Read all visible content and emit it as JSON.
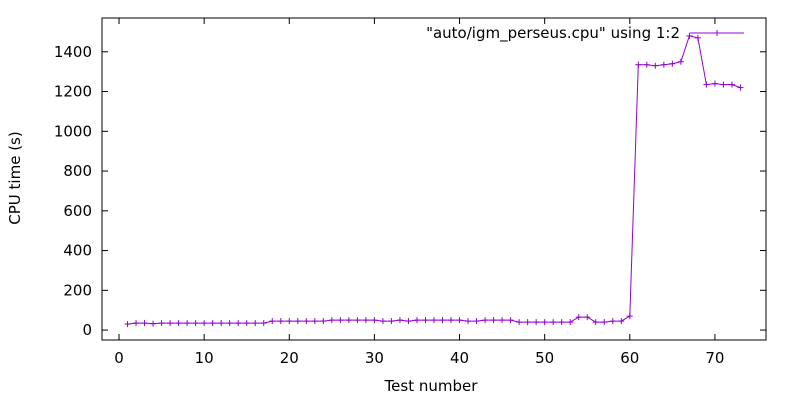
{
  "chart_data": {
    "type": "line",
    "xlabel": "Test number",
    "ylabel": "CPU time (s)",
    "xlim": [
      -2,
      76
    ],
    "ylim": [
      -50,
      1570
    ],
    "xticks": [
      0,
      10,
      20,
      30,
      40,
      50,
      60,
      70
    ],
    "yticks": [
      0,
      200,
      400,
      600,
      800,
      1000,
      1200,
      1400
    ],
    "grid": false,
    "legend": "top-right",
    "color": "#9400d3",
    "series": [
      {
        "name": "\"auto/igm_perseus.cpu\" using 1:2",
        "x": [
          1,
          2,
          3,
          4,
          5,
          6,
          7,
          8,
          9,
          10,
          11,
          12,
          13,
          14,
          15,
          16,
          17,
          18,
          19,
          20,
          21,
          22,
          23,
          24,
          25,
          26,
          27,
          28,
          29,
          30,
          31,
          32,
          33,
          34,
          35,
          36,
          37,
          38,
          39,
          40,
          41,
          42,
          43,
          44,
          45,
          46,
          47,
          48,
          49,
          50,
          51,
          52,
          53,
          54,
          55,
          56,
          57,
          58,
          59,
          60,
          61,
          62,
          63,
          64,
          65,
          66,
          67,
          68,
          69,
          70,
          71,
          72,
          73
        ],
        "y": [
          30,
          35,
          35,
          32,
          35,
          35,
          35,
          35,
          35,
          35,
          35,
          35,
          35,
          35,
          35,
          35,
          35,
          45,
          45,
          45,
          45,
          45,
          45,
          45,
          50,
          50,
          50,
          50,
          50,
          50,
          45,
          45,
          50,
          45,
          50,
          50,
          50,
          50,
          50,
          50,
          45,
          45,
          50,
          50,
          50,
          50,
          40,
          40,
          40,
          40,
          40,
          40,
          40,
          65,
          65,
          40,
          40,
          45,
          45,
          70,
          1335,
          1335,
          1330,
          1335,
          1340,
          1350,
          1480,
          1470,
          1235,
          1240,
          1235,
          1235,
          1220
        ]
      }
    ]
  }
}
